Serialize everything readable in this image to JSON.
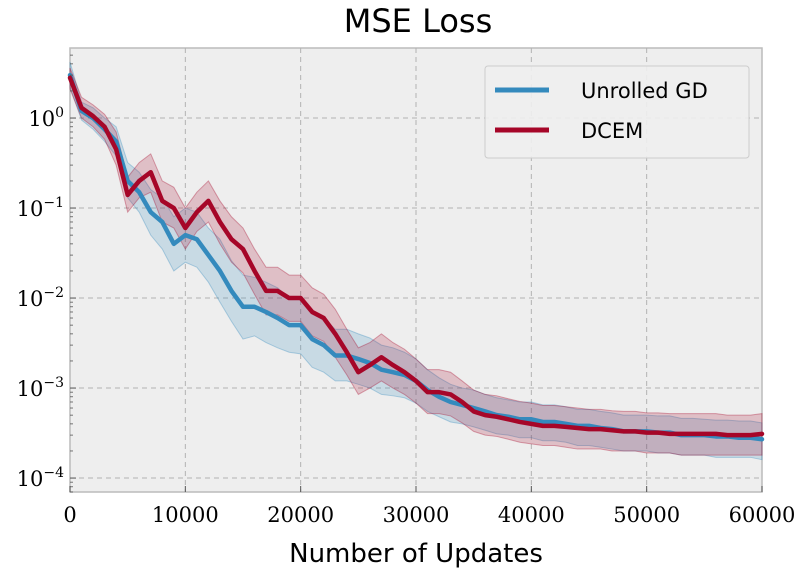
{
  "chart_data": {
    "type": "line",
    "title": "MSE Loss",
    "xlabel": "Number of Updates",
    "ylabel": "",
    "x_scale": "linear",
    "y_scale": "log",
    "xlim": [
      0,
      60000
    ],
    "ylim": [
      7e-05,
      6
    ],
    "x_ticks": [
      0,
      10000,
      20000,
      30000,
      40000,
      50000,
      60000
    ],
    "x_tick_labels": [
      "0",
      "10000",
      "20000",
      "30000",
      "40000",
      "50000",
      "60000"
    ],
    "y_ticks": [
      1,
      0.1,
      0.01,
      0.001,
      0.0001
    ],
    "y_tick_labels": [
      {
        "base": "10",
        "exp": "0"
      },
      {
        "base": "10",
        "exp": "−1"
      },
      {
        "base": "10",
        "exp": "−2"
      },
      {
        "base": "10",
        "exp": "−3"
      },
      {
        "base": "10",
        "exp": "−4"
      }
    ],
    "grid": true,
    "legend_position": "top-right",
    "x": [
      0,
      1000,
      2000,
      3000,
      4000,
      5000,
      6000,
      7000,
      8000,
      9000,
      10000,
      11000,
      12000,
      13000,
      14000,
      15000,
      16000,
      17000,
      18000,
      19000,
      20000,
      21000,
      22000,
      23000,
      24000,
      25000,
      26000,
      27000,
      28000,
      29000,
      30000,
      31000,
      32000,
      33000,
      34000,
      35000,
      36000,
      37000,
      38000,
      39000,
      40000,
      41000,
      42000,
      43000,
      44000,
      45000,
      46000,
      47000,
      48000,
      49000,
      50000,
      51000,
      52000,
      53000,
      54000,
      55000,
      56000,
      57000,
      58000,
      59000,
      60000
    ],
    "series": [
      {
        "name": "Unrolled GD",
        "color": "#348abd",
        "values": [
          3.0,
          1.2,
          1.0,
          0.75,
          0.55,
          0.2,
          0.15,
          0.09,
          0.07,
          0.04,
          0.05,
          0.045,
          0.03,
          0.02,
          0.012,
          0.008,
          0.008,
          0.007,
          0.006,
          0.005,
          0.005,
          0.0035,
          0.003,
          0.0023,
          0.0023,
          0.0021,
          0.0019,
          0.0016,
          0.0015,
          0.0014,
          0.0012,
          0.00095,
          0.0008,
          0.0007,
          0.00065,
          0.0006,
          0.00055,
          0.0005,
          0.00048,
          0.00045,
          0.00045,
          0.00042,
          0.00042,
          0.0004,
          0.00038,
          0.00038,
          0.00036,
          0.00035,
          0.00033,
          0.00033,
          0.00033,
          0.00032,
          0.00032,
          0.0003,
          0.0003,
          0.0003,
          0.00029,
          0.00029,
          0.00028,
          0.00028,
          0.00027
        ],
        "lower": [
          2.2,
          0.95,
          0.75,
          0.55,
          0.38,
          0.13,
          0.09,
          0.05,
          0.035,
          0.02,
          0.025,
          0.022,
          0.015,
          0.009,
          0.0055,
          0.0035,
          0.0038,
          0.0032,
          0.0028,
          0.0025,
          0.0024,
          0.0017,
          0.0015,
          0.0012,
          0.0012,
          0.0011,
          0.001,
          0.00085,
          0.00082,
          0.00078,
          0.00068,
          0.00055,
          0.00048,
          0.00042,
          0.0004,
          0.00037,
          0.00034,
          0.00031,
          0.0003,
          0.00028,
          0.00028,
          0.00026,
          0.00026,
          0.00025,
          0.00023,
          0.00023,
          0.00022,
          0.00021,
          0.0002,
          0.0002,
          0.0002,
          0.00019,
          0.00019,
          0.00018,
          0.00018,
          0.00018,
          0.00017,
          0.00017,
          0.00017,
          0.00017,
          0.00016
        ],
        "upper": [
          4.2,
          1.5,
          1.3,
          1.0,
          0.8,
          0.32,
          0.25,
          0.16,
          0.13,
          0.08,
          0.1,
          0.09,
          0.06,
          0.045,
          0.026,
          0.018,
          0.017,
          0.015,
          0.013,
          0.01,
          0.01,
          0.0072,
          0.006,
          0.0045,
          0.0045,
          0.004,
          0.0036,
          0.003,
          0.0028,
          0.0025,
          0.0021,
          0.0016,
          0.0013,
          0.0011,
          0.001,
          0.00095,
          0.00085,
          0.00078,
          0.00074,
          0.0007,
          0.0007,
          0.00065,
          0.00065,
          0.00062,
          0.00058,
          0.00058,
          0.00055,
          0.00053,
          0.0005,
          0.0005,
          0.0005,
          0.00049,
          0.00049,
          0.00046,
          0.00046,
          0.00045,
          0.00044,
          0.00044,
          0.00043,
          0.00043,
          0.00041
        ]
      },
      {
        "name": "DCEM",
        "color": "#a60628",
        "values": [
          2.8,
          1.3,
          1.05,
          0.8,
          0.45,
          0.14,
          0.2,
          0.25,
          0.12,
          0.1,
          0.06,
          0.09,
          0.12,
          0.07,
          0.045,
          0.035,
          0.02,
          0.012,
          0.012,
          0.01,
          0.01,
          0.007,
          0.006,
          0.004,
          0.0025,
          0.0015,
          0.0018,
          0.0022,
          0.0018,
          0.0015,
          0.0012,
          0.0009,
          0.0009,
          0.00085,
          0.0007,
          0.00055,
          0.0005,
          0.00048,
          0.00045,
          0.00042,
          0.0004,
          0.00038,
          0.00038,
          0.00037,
          0.00036,
          0.00035,
          0.00035,
          0.00034,
          0.00033,
          0.00033,
          0.00032,
          0.00032,
          0.00031,
          0.00031,
          0.00031,
          0.00031,
          0.00031,
          0.0003,
          0.0003,
          0.0003,
          0.00031
        ],
        "lower": [
          2.1,
          1.0,
          0.8,
          0.58,
          0.3,
          0.09,
          0.13,
          0.15,
          0.07,
          0.06,
          0.035,
          0.055,
          0.07,
          0.04,
          0.025,
          0.019,
          0.011,
          0.0065,
          0.0065,
          0.0055,
          0.0055,
          0.0038,
          0.0033,
          0.0022,
          0.0014,
          0.00085,
          0.001,
          0.0012,
          0.001,
          0.00085,
          0.00068,
          0.00052,
          0.00052,
          0.00049,
          0.00041,
          0.00033,
          0.0003,
          0.00029,
          0.00027,
          0.00025,
          0.00024,
          0.00023,
          0.00023,
          0.00022,
          0.00021,
          0.00021,
          0.00021,
          0.0002,
          0.0002,
          0.0002,
          0.00019,
          0.00019,
          0.00019,
          0.00018,
          0.00018,
          0.00018,
          0.00018,
          0.00018,
          0.00018,
          0.00018,
          0.00018
        ],
        "upper": [
          3.6,
          1.7,
          1.4,
          1.1,
          0.7,
          0.22,
          0.32,
          0.4,
          0.2,
          0.17,
          0.1,
          0.15,
          0.2,
          0.12,
          0.08,
          0.06,
          0.035,
          0.022,
          0.022,
          0.018,
          0.018,
          0.013,
          0.011,
          0.0075,
          0.0045,
          0.0028,
          0.0032,
          0.004,
          0.0032,
          0.0027,
          0.0021,
          0.0016,
          0.0016,
          0.0015,
          0.0012,
          0.00095,
          0.00085,
          0.00082,
          0.00076,
          0.00071,
          0.00068,
          0.00064,
          0.00064,
          0.00062,
          0.0006,
          0.00058,
          0.00058,
          0.00056,
          0.00055,
          0.00055,
          0.00053,
          0.00053,
          0.00052,
          0.00052,
          0.00052,
          0.00052,
          0.00052,
          0.0005,
          0.0005,
          0.0005,
          0.00052
        ]
      }
    ]
  }
}
